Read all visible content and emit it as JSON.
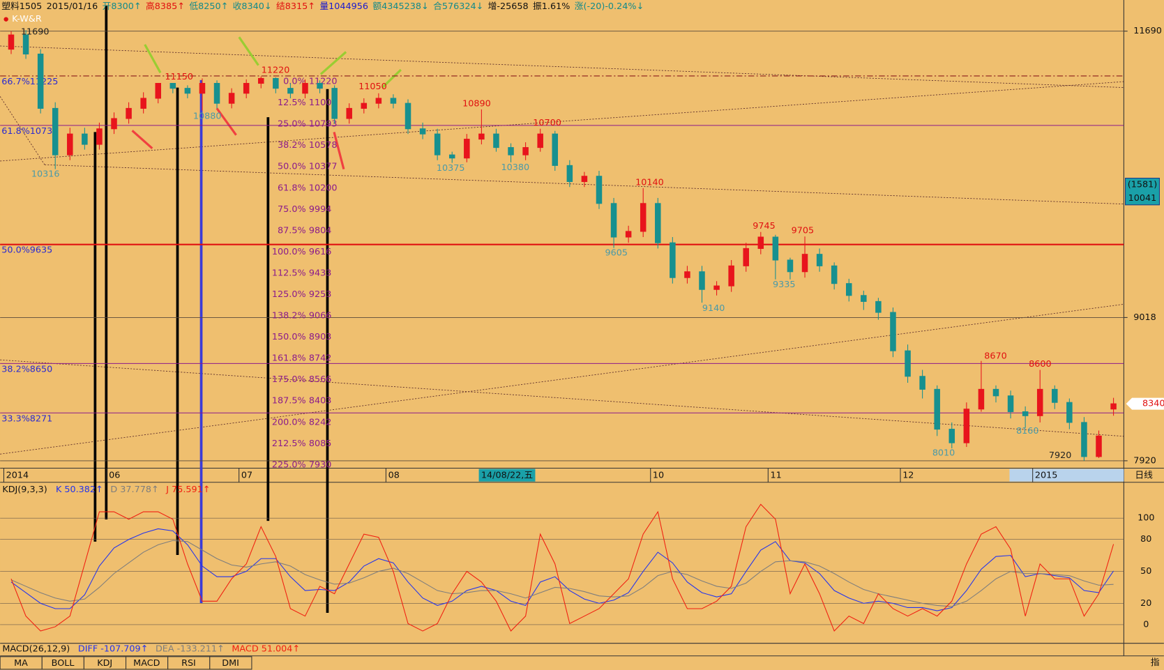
{
  "chart_data": [
    {
      "type": "candlestick",
      "title": "K-W&R",
      "header": [
        {
          "text": "塑料1505",
          "color": "#111111"
        },
        {
          "text": "2015/01/16",
          "color": "#111111"
        },
        {
          "text": "开8300↑",
          "color": "#138a8a"
        },
        {
          "text": "高8385↑",
          "color": "#e01010"
        },
        {
          "text": "低8250↑",
          "color": "#138a8a"
        },
        {
          "text": "收8340↓",
          "color": "#138a8a"
        },
        {
          "text": "结8315↑",
          "color": "#e01010"
        },
        {
          "text": "量1044956",
          "color": "#1a1ad0"
        },
        {
          "text": "额4345238↓",
          "color": "#138a8a"
        },
        {
          "text": "合576324↓",
          "color": "#138a8a"
        },
        {
          "text": "增-25658",
          "color": "#111111"
        },
        {
          "text": "振1.61%",
          "color": "#111111"
        },
        {
          "text": "涨(-20)-0.24%↓",
          "color": "#138a8a"
        }
      ],
      "categories": [
        "2014",
        null,
        null,
        null,
        null,
        null,
        null,
        "06",
        null,
        null,
        null,
        null,
        null,
        null,
        null,
        null,
        "07",
        null,
        null,
        null,
        null,
        null,
        null,
        null,
        null,
        null,
        "08",
        null,
        null,
        null,
        null,
        null,
        null,
        null,
        null,
        null,
        null,
        null,
        null,
        null,
        null,
        null,
        null,
        null,
        "10",
        null,
        null,
        null,
        null,
        null,
        null,
        null,
        "11",
        null,
        null,
        null,
        null,
        null,
        null,
        null,
        null,
        "12",
        null,
        null,
        null,
        null,
        null,
        null,
        null,
        null,
        "2015",
        null,
        null,
        null,
        null,
        null
      ],
      "open": [
        11500,
        11650,
        11450,
        10900,
        10450,
        10650,
        10550,
        10700,
        10800,
        10900,
        11000,
        11150,
        11100,
        11050,
        11150,
        10950,
        11050,
        11150,
        11200,
        11100,
        11050,
        11150,
        11100,
        10800,
        10900,
        10950,
        11000,
        10950,
        10700,
        10650,
        10450,
        10420,
        10600,
        10650,
        10520,
        10450,
        10520,
        10650,
        10350,
        10200,
        10250,
        10000,
        9700,
        9750,
        10000,
        9650,
        9350,
        9400,
        9250,
        9280,
        9450,
        9600,
        9700,
        9500,
        9400,
        9550,
        9450,
        9300,
        9200,
        9150,
        9060,
        8750,
        8550,
        8450,
        8150,
        8050,
        8300,
        8450,
        8400,
        8280,
        8250,
        8450,
        8350,
        8200,
        7950,
        8300
      ],
      "high": [
        11690,
        11700,
        11500,
        10960,
        10710,
        10710,
        10760,
        10860,
        10960,
        11060,
        11150,
        11150,
        11130,
        11200,
        11180,
        11100,
        11190,
        11220,
        11210,
        11150,
        11190,
        11180,
        11130,
        10950,
        11000,
        11050,
        11040,
        10990,
        10760,
        10700,
        10480,
        10650,
        10890,
        10700,
        10560,
        10570,
        10700,
        10680,
        10400,
        10290,
        10300,
        10050,
        9800,
        10140,
        10050,
        9700,
        9450,
        9450,
        9320,
        9500,
        9650,
        9745,
        9720,
        9520,
        9705,
        9600,
        9480,
        9340,
        9240,
        9180,
        9100,
        8800,
        8600,
        8480,
        8200,
        8350,
        8670,
        8480,
        8440,
        8320,
        8600,
        8480,
        8380,
        8240,
        8140,
        8385
      ],
      "low": [
        11450,
        11400,
        10850,
        10316,
        10400,
        10500,
        10500,
        10650,
        10750,
        10850,
        10950,
        11050,
        11000,
        10880,
        10900,
        10900,
        11000,
        11100,
        11050,
        11000,
        11000,
        11050,
        10750,
        10750,
        10850,
        10900,
        10900,
        10650,
        10600,
        10400,
        10375,
        10380,
        10550,
        10480,
        10380,
        10400,
        10480,
        10300,
        10150,
        10150,
        9950,
        9605,
        9650,
        9700,
        9600,
        9300,
        9300,
        9140,
        9200,
        9230,
        9400,
        9550,
        9335,
        9335,
        9350,
        9400,
        9250,
        9150,
        9080,
        9000,
        8700,
        8500,
        8380,
        8100,
        8010,
        8020,
        8280,
        8350,
        8230,
        8160,
        8200,
        8300,
        8150,
        7920,
        7940,
        8250
      ],
      "close": [
        11650,
        11450,
        10900,
        10450,
        10650,
        10550,
        10700,
        10800,
        10900,
        11000,
        11150,
        11100,
        11050,
        11150,
        10950,
        11050,
        11150,
        11200,
        11100,
        11050,
        11150,
        11100,
        10800,
        10900,
        10950,
        11000,
        10950,
        10700,
        10650,
        10450,
        10420,
        10600,
        10650,
        10520,
        10450,
        10520,
        10650,
        10350,
        10200,
        10250,
        10000,
        9700,
        9750,
        10000,
        9650,
        9350,
        9400,
        9250,
        9280,
        9450,
        9600,
        9700,
        9500,
        9400,
        9550,
        9450,
        9300,
        9200,
        9150,
        9060,
        8750,
        8550,
        8450,
        8150,
        8050,
        8300,
        8450,
        8400,
        8280,
        8250,
        8450,
        8350,
        8200,
        7950,
        8100,
        8340
      ],
      "up_color": "#e8141c",
      "down_color": "#17908f",
      "log_scale": true,
      "ylim": [
        7867,
        11880
      ],
      "yticks": [
        11690,
        9018,
        7920
      ],
      "last_box": {
        "label": "(1581)",
        "value": 10041
      },
      "price_box": 8340,
      "price_labels": [
        11690,
        11150,
        10880,
        11220,
        11050,
        10890,
        10700,
        10375,
        10380,
        10316,
        10140,
        9745,
        9705,
        9605,
        9335,
        9140,
        8670,
        8600,
        8160,
        8010,
        7920
      ],
      "fib_left": [
        {
          "pct": "66.7%",
          "value": 11225,
          "color": "#8b1a1a"
        },
        {
          "pct": "61.8%",
          "value": 10733,
          "color": "#8b1a8b"
        },
        {
          "pct": "50.0%",
          "value": 9635,
          "color": "#e01010"
        },
        {
          "pct": "38.2%",
          "value": 8650,
          "color": "#8b1a8b"
        },
        {
          "pct": "33.3%",
          "value": 8271,
          "color": "#8b1a8b"
        }
      ],
      "fib_mid": [
        {
          "pct": "0.0%",
          "value": 11220
        },
        {
          "pct": "12.5%",
          "value": 11006
        },
        {
          "pct": "25.0%",
          "value": 10793
        },
        {
          "pct": "38.2%",
          "value": 10578
        },
        {
          "pct": "50.0%",
          "value": 10377
        },
        {
          "pct": "61.8%",
          "value": 10200
        },
        {
          "pct": "75.0%",
          "value": 9994
        },
        {
          "pct": "87.5%",
          "value": 9804
        },
        {
          "pct": "100.0%",
          "value": 9616
        },
        {
          "pct": "112.5%",
          "value": 9433
        },
        {
          "pct": "125.0%",
          "value": 9253
        },
        {
          "pct": "138.2%",
          "value": 9066
        },
        {
          "pct": "150.0%",
          "value": 8903
        },
        {
          "pct": "161.8%",
          "value": 8742
        },
        {
          "pct": "175.0%",
          "value": 8566
        },
        {
          "pct": "187.5%",
          "value": 8403
        },
        {
          "pct": "200.0%",
          "value": 8242
        },
        {
          "pct": "212.5%",
          "value": 8085
        },
        {
          "pct": "225.0%",
          "value": 7930
        }
      ],
      "cursor_date": "14/08/22,五",
      "period": "日线"
    },
    {
      "type": "line",
      "title": "KDJ(9,3,3)",
      "series": [
        {
          "name": "K 50.382↑",
          "color": "#2233ee",
          "values": [
            40,
            30,
            20,
            15,
            15,
            28,
            55,
            72,
            80,
            86,
            90,
            88,
            75,
            55,
            45,
            45,
            50,
            62,
            62,
            45,
            32,
            33,
            32,
            40,
            55,
            62,
            58,
            40,
            25,
            18,
            22,
            32,
            36,
            32,
            22,
            18,
            40,
            45,
            32,
            24,
            20,
            23,
            30,
            50,
            68,
            58,
            40,
            30,
            26,
            29,
            50,
            70,
            78,
            60,
            58,
            48,
            32,
            25,
            20,
            22,
            20,
            16,
            16,
            13,
            16,
            32,
            52,
            64,
            65,
            45,
            48,
            46,
            44,
            32,
            30,
            50.382
          ]
        },
        {
          "name": "D 37.778↑",
          "color": "#7d7d7d",
          "values": [
            42,
            36,
            30,
            25,
            22,
            24,
            35,
            48,
            58,
            68,
            75,
            79,
            78,
            70,
            62,
            56,
            54,
            57,
            59,
            55,
            47,
            42,
            38,
            39,
            44,
            50,
            53,
            48,
            40,
            32,
            29,
            30,
            32,
            32,
            29,
            25,
            30,
            35,
            34,
            31,
            27,
            26,
            27,
            35,
            46,
            50,
            47,
            41,
            36,
            34,
            39,
            50,
            59,
            60,
            59,
            55,
            48,
            40,
            33,
            29,
            26,
            23,
            20,
            18,
            17,
            22,
            32,
            43,
            50,
            48,
            48,
            47,
            46,
            41,
            37,
            37.778
          ]
        },
        {
          "name": "J 75.591↑",
          "color": "#f01e10",
          "values": [
            43,
            8,
            -6,
            -2,
            8,
            57,
            106,
            106,
            99,
            106,
            106,
            99,
            57,
            22,
            22,
            43,
            57,
            92,
            64,
            15,
            8,
            36,
            29,
            57,
            85,
            82,
            50,
            1,
            -6,
            1,
            29,
            50,
            40,
            22,
            -6,
            8,
            85,
            57,
            1,
            8,
            15,
            29,
            43,
            85,
            106,
            43,
            15,
            15,
            22,
            36,
            92,
            113,
            99,
            29,
            57,
            29,
            -6,
            8,
            1,
            29,
            15,
            8,
            15,
            8,
            22,
            57,
            85,
            92,
            71,
            8,
            57,
            43,
            43,
            8,
            29,
            75.591
          ]
        }
      ],
      "ylim": [
        -28,
        133
      ],
      "yticks": [
        0,
        20,
        50,
        80,
        100
      ]
    },
    {
      "type": "indicator",
      "title": "MACD(26,12,9)",
      "series": [
        {
          "name": "DIFF -107.709↑",
          "color": "#2233ee"
        },
        {
          "name": "DEA -133.211↑",
          "color": "#7d7d7d"
        },
        {
          "name": "MACD 51.004↑",
          "color": "#f01e10"
        }
      ]
    }
  ],
  "tabs": [
    "MA",
    "BOLL",
    "KDJ",
    "MACD",
    "RSI",
    "DMI"
  ],
  "side_tab": "指"
}
